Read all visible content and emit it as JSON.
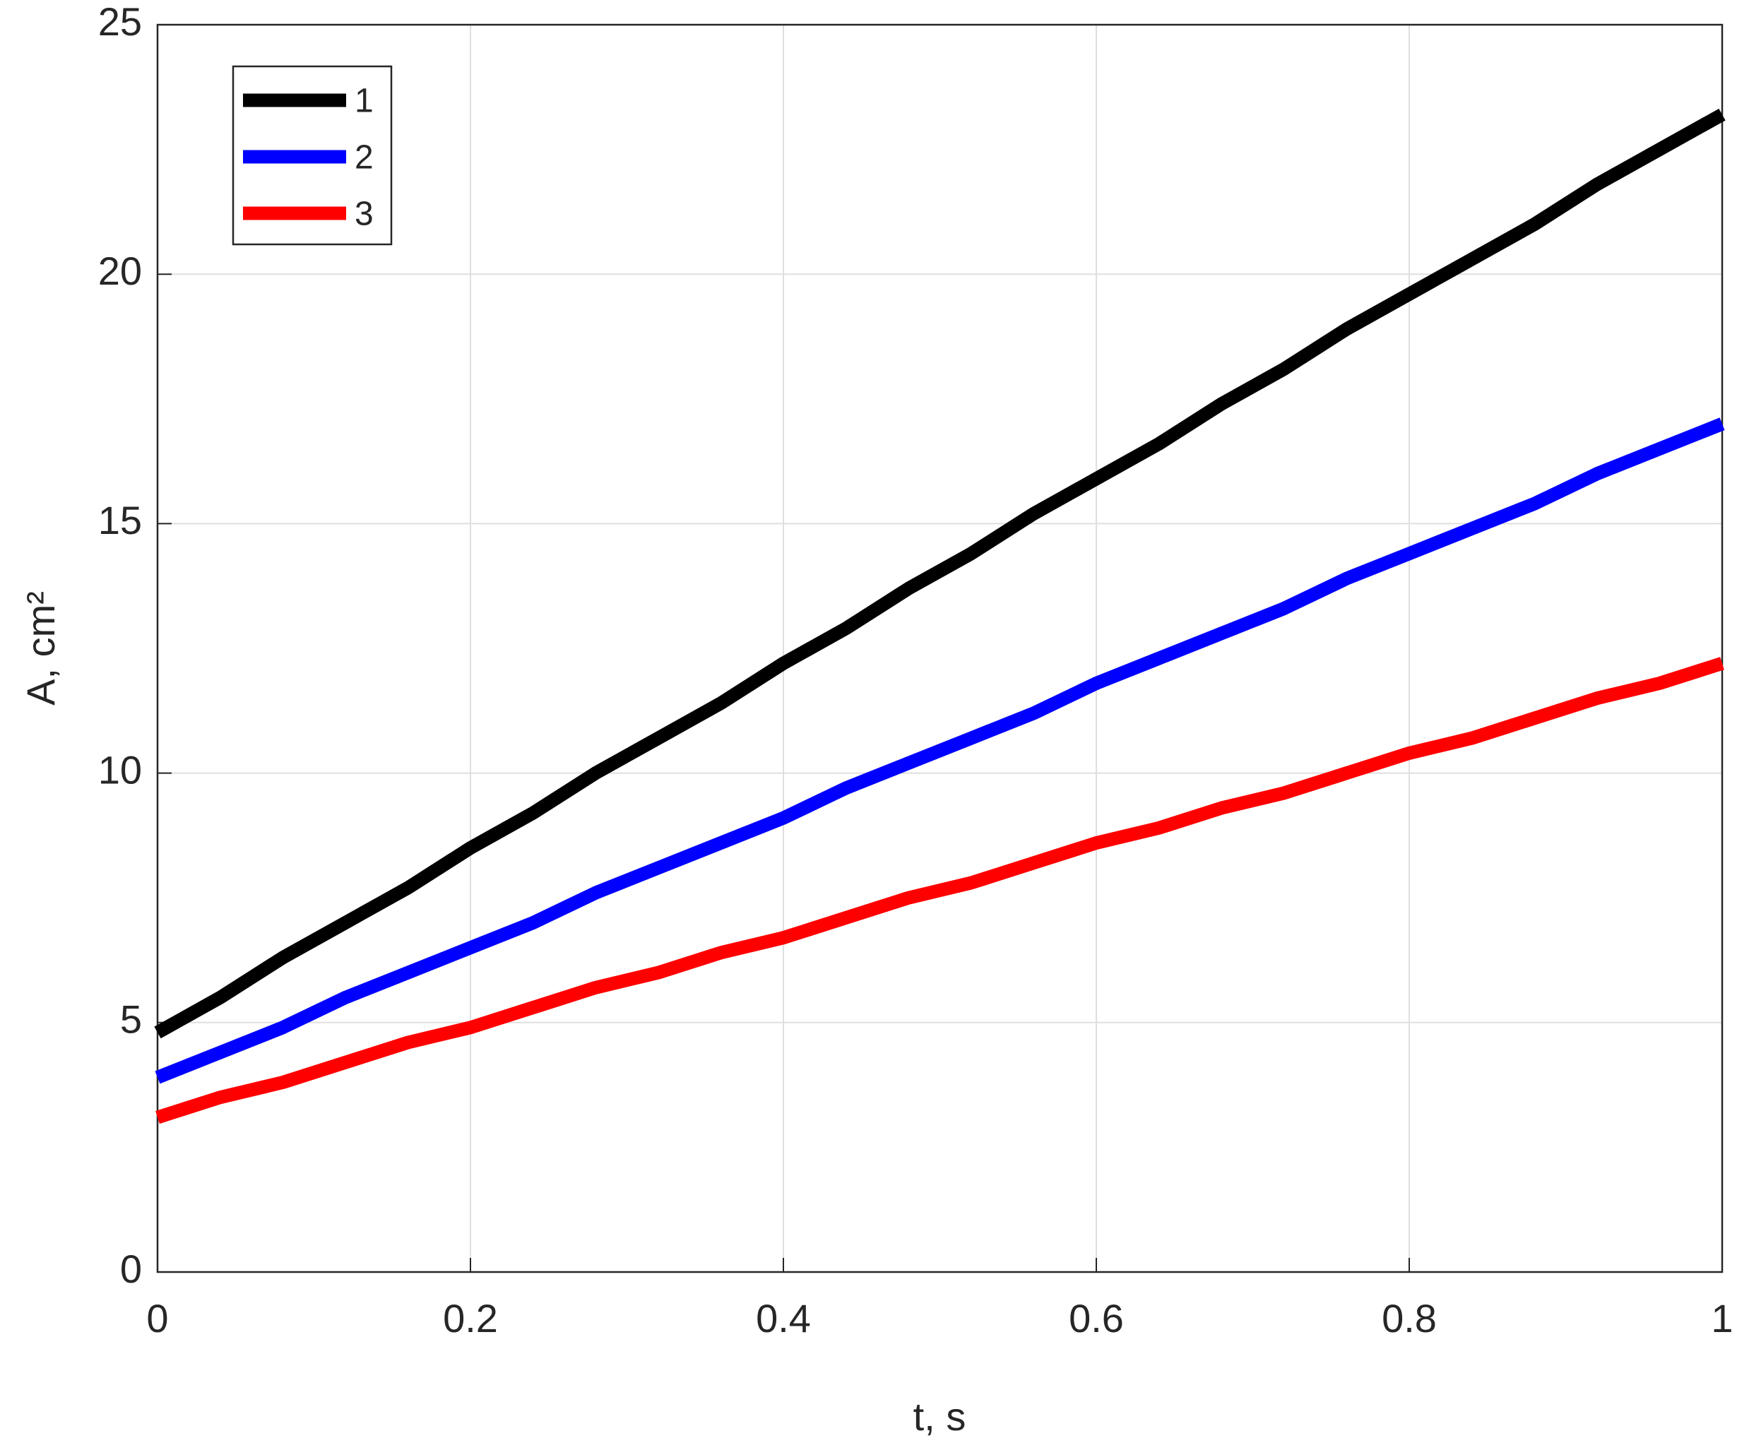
{
  "chart_data": {
    "type": "line",
    "xlabel": "t, s",
    "ylabel": "A, cm²",
    "x": [
      0,
      0.04,
      0.08,
      0.12,
      0.16,
      0.2,
      0.24,
      0.28,
      0.32,
      0.36,
      0.4,
      0.44,
      0.48,
      0.52,
      0.56,
      0.6,
      0.64,
      0.68,
      0.72,
      0.76,
      0.8,
      0.84,
      0.88,
      0.92,
      0.96,
      1
    ],
    "series": [
      {
        "name": "1",
        "color": "#000000",
        "values": [
          4.8,
          5.5,
          6.3,
          7.0,
          7.7,
          8.5,
          9.2,
          10.0,
          10.7,
          11.4,
          12.2,
          12.9,
          13.7,
          14.4,
          15.2,
          15.9,
          16.6,
          17.4,
          18.1,
          18.9,
          19.6,
          20.3,
          21.0,
          21.8,
          22.5,
          23.2
        ]
      },
      {
        "name": "2",
        "color": "#0000ff",
        "values": [
          3.9,
          4.4,
          4.9,
          5.5,
          6.0,
          6.5,
          7.0,
          7.6,
          8.1,
          8.6,
          9.1,
          9.7,
          10.2,
          10.7,
          11.2,
          11.8,
          12.3,
          12.8,
          13.3,
          13.9,
          14.4,
          14.9,
          15.4,
          16.0,
          16.5,
          17.0
        ]
      },
      {
        "name": "3",
        "color": "#ff0000",
        "values": [
          3.1,
          3.5,
          3.8,
          4.2,
          4.6,
          4.9,
          5.3,
          5.7,
          6.0,
          6.4,
          6.7,
          7.1,
          7.5,
          7.8,
          8.2,
          8.6,
          8.9,
          9.3,
          9.6,
          10.0,
          10.4,
          10.7,
          11.1,
          11.5,
          11.8,
          12.2
        ]
      }
    ],
    "xlim": [
      0,
      1
    ],
    "xticks": [
      0,
      0.2,
      0.4,
      0.6,
      0.8,
      1
    ],
    "ylim": [
      0,
      25
    ],
    "yticks": [
      0,
      5,
      10,
      15,
      20,
      25
    ],
    "grid": true,
    "legend": "upper-left"
  }
}
